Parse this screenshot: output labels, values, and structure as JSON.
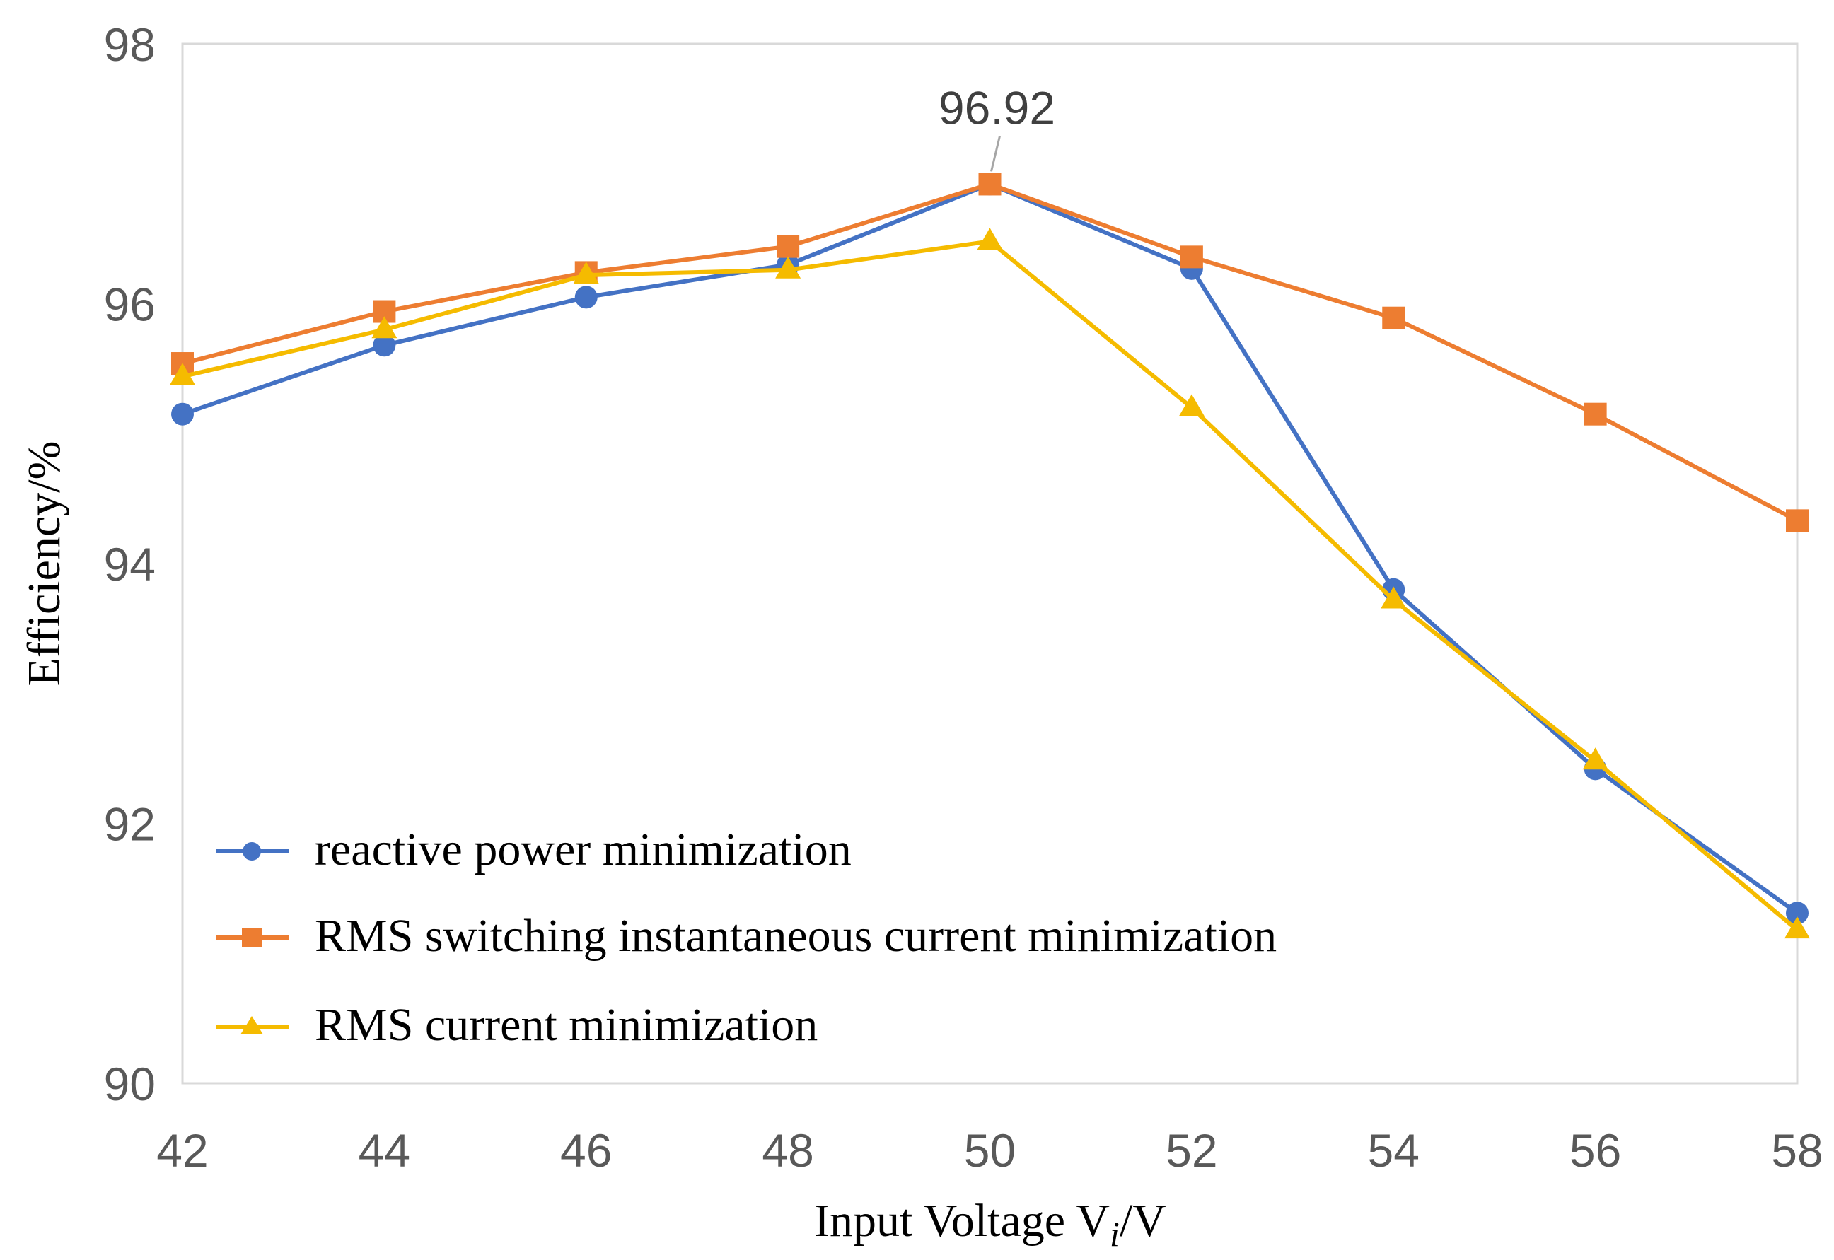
{
  "chart_data": {
    "type": "line",
    "title": "",
    "xlabel": "Input Voltage V",
    "xlabel_subscript": "i",
    "xlabel_suffix": "/V",
    "ylabel": "Efficiency/%",
    "xlim": [
      42,
      58
    ],
    "ylim": [
      90,
      98
    ],
    "x": [
      42,
      44,
      46,
      48,
      50,
      52,
      54,
      56,
      58
    ],
    "x_tick_labels": [
      "42",
      "44",
      "46",
      "48",
      "50",
      "52",
      "54",
      "56",
      "58"
    ],
    "y_ticks": [
      90,
      92,
      94,
      96,
      98
    ],
    "y_tick_labels": [
      "90",
      "92",
      "94",
      "96",
      "98"
    ],
    "grid": false,
    "legend_position": "bottom-left",
    "series": [
      {
        "name": "reactive power minimization",
        "color": "#4472C4",
        "marker": "circle",
        "values": [
          95.15,
          95.68,
          96.05,
          96.3,
          96.92,
          96.27,
          93.8,
          92.42,
          91.31
        ]
      },
      {
        "name": "RMS switching instantaneous current minimization",
        "color": "#ED7D31",
        "marker": "square",
        "values": [
          95.54,
          95.94,
          96.24,
          96.44,
          96.92,
          96.36,
          95.89,
          95.15,
          94.33
        ]
      },
      {
        "name": "RMS current minimization",
        "color": "#F5BB00",
        "marker": "triangle",
        "values": [
          95.44,
          95.8,
          96.22,
          96.26,
          96.48,
          95.2,
          93.72,
          92.48,
          91.18
        ]
      }
    ],
    "annotations": [
      {
        "text": "96.92",
        "x": 50,
        "y": 96.92
      }
    ]
  }
}
